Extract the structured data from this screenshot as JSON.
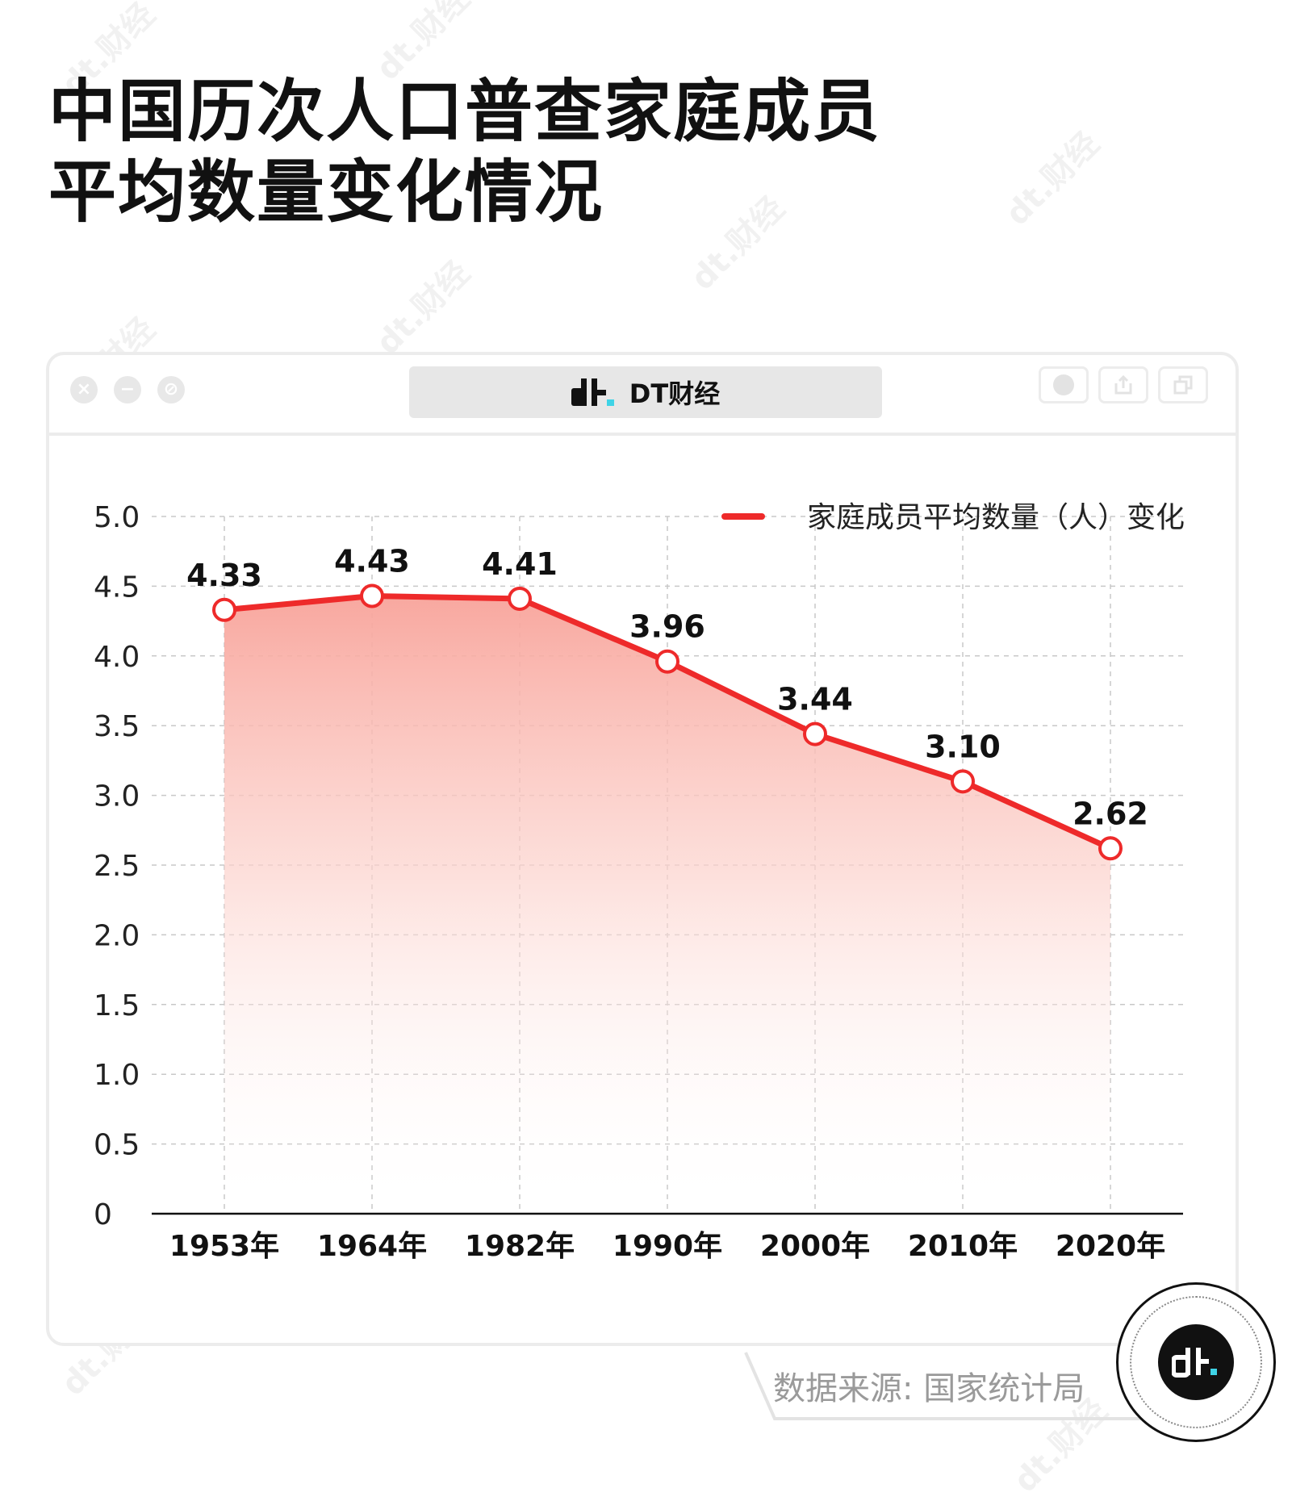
{
  "title": {
    "line1": "中国历次人口普查家庭成员",
    "line2": "平均数量变化情况"
  },
  "brand": {
    "name": "DT财经",
    "watermark": "dt.财经"
  },
  "window": {
    "buttons": [
      "close-icon",
      "minimize-icon",
      "block-icon"
    ],
    "toolbar_icons": [
      "record-icon",
      "share-icon",
      "copy-icon"
    ]
  },
  "source": {
    "text": "数据来源: 国家统计局"
  },
  "colors": {
    "line": "#ee2a2a",
    "accent": "#3fd3e6",
    "grid": "#c8c8c8"
  },
  "chart_data": {
    "type": "line",
    "categories": [
      "1953年",
      "1964年",
      "1982年",
      "1990年",
      "2000年",
      "2010年",
      "2020年"
    ],
    "series": [
      {
        "name": "家庭成员平均数量（人）变化",
        "values": [
          4.33,
          4.43,
          4.41,
          3.96,
          3.44,
          3.1,
          2.62
        ],
        "labels": [
          "4.33",
          "4.43",
          "4.41",
          "3.96",
          "3.44",
          "3.10",
          "2.62"
        ]
      }
    ],
    "yticks": [
      "0",
      "0.5",
      "1.0",
      "1.5",
      "2.0",
      "2.5",
      "3.0",
      "3.5",
      "4.0",
      "4.5",
      "5.0"
    ],
    "ylim": [
      0,
      5
    ],
    "grid": true,
    "legend_position": "top-right",
    "area_fill": true
  }
}
